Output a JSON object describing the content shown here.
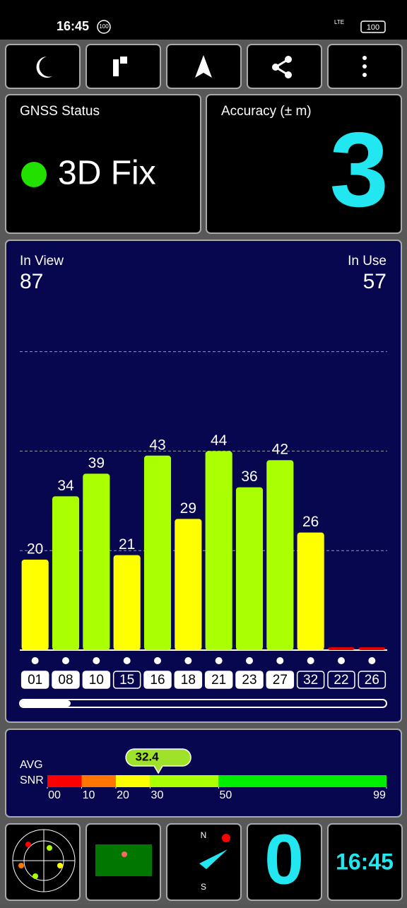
{
  "status_bar": {
    "time": "16:45",
    "badge": "100",
    "network": "LTE",
    "battery": "100"
  },
  "gnss_status": {
    "title": "GNSS Status",
    "fix": "3D Fix"
  },
  "accuracy": {
    "title": "Accuracy (± m)",
    "value": 3
  },
  "satellites": {
    "in_view_label": "In View",
    "in_view": 87,
    "in_use_label": "In Use",
    "in_use": 57
  },
  "chart_data": {
    "type": "bar",
    "categories": [
      "01",
      "08",
      "10",
      "15",
      "16",
      "18",
      "21",
      "23",
      "27",
      "32",
      "22",
      "26"
    ],
    "values": [
      20,
      34,
      39,
      21,
      43,
      29,
      44,
      36,
      42,
      26,
      0,
      0
    ],
    "colors": [
      "#ffff00",
      "#aaff00",
      "#aaff00",
      "#ffff00",
      "#aaff00",
      "#ffff00",
      "#aaff00",
      "#aaff00",
      "#aaff00",
      "#ffff00",
      "#e00000",
      "#e00000"
    ],
    "used": [
      true,
      true,
      true,
      false,
      true,
      true,
      true,
      true,
      true,
      false,
      false,
      false
    ],
    "ylim": [
      0,
      70
    ],
    "yticks": [
      22,
      44,
      66
    ],
    "grid": true
  },
  "snr": {
    "label_1": "AVG",
    "label_2": "SNR",
    "average": 32.4,
    "xlim": [
      0,
      99
    ],
    "xticks": [
      {
        "value": 0,
        "label": "00"
      },
      10,
      20,
      30,
      50,
      99
    ],
    "segment_colors": [
      "#ff0000",
      "#ff7700",
      "#ffff00",
      "#aaff00",
      "#00ee00"
    ]
  },
  "bottom": {
    "speed": 0,
    "clock": "16:45"
  }
}
